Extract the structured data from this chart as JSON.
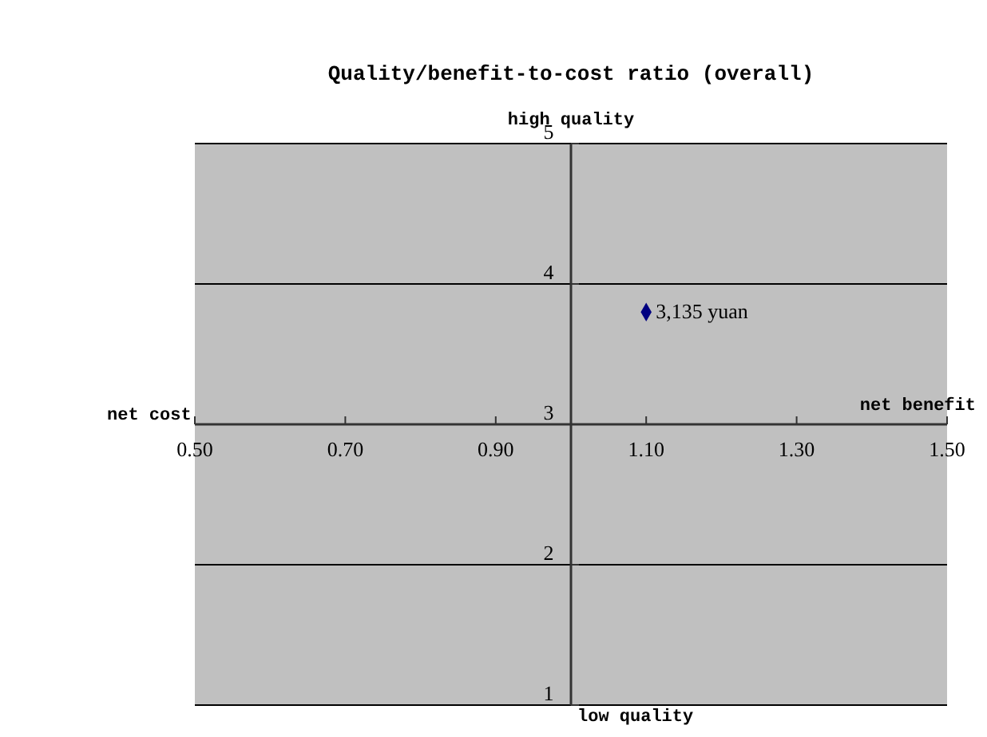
{
  "chart_data": {
    "type": "scatter",
    "title": "Quality/benefit-to-cost ratio (overall)",
    "annotations": [
      "high quality",
      "low quality",
      "net cost",
      "net benefit"
    ],
    "series": [
      {
        "name": "3,135 yuan",
        "color": "#000080",
        "x": [
          1.1
        ],
        "values": [
          3.8
        ]
      }
    ],
    "xlim": [
      0.5,
      1.5
    ],
    "xticks": [
      {
        "value": 0.5,
        "label": "0.50"
      },
      {
        "value": 0.7,
        "label": "0.70"
      },
      {
        "value": 0.9,
        "label": "0.90"
      },
      {
        "value": 1.1,
        "label": "1.10"
      },
      {
        "value": 1.3,
        "label": "1.30"
      },
      {
        "value": 1.5,
        "label": "1.50"
      }
    ],
    "ylim": [
      1,
      5
    ],
    "yticks": [
      1,
      2,
      3,
      4,
      5
    ],
    "grid": "y",
    "marker": "diamond"
  }
}
